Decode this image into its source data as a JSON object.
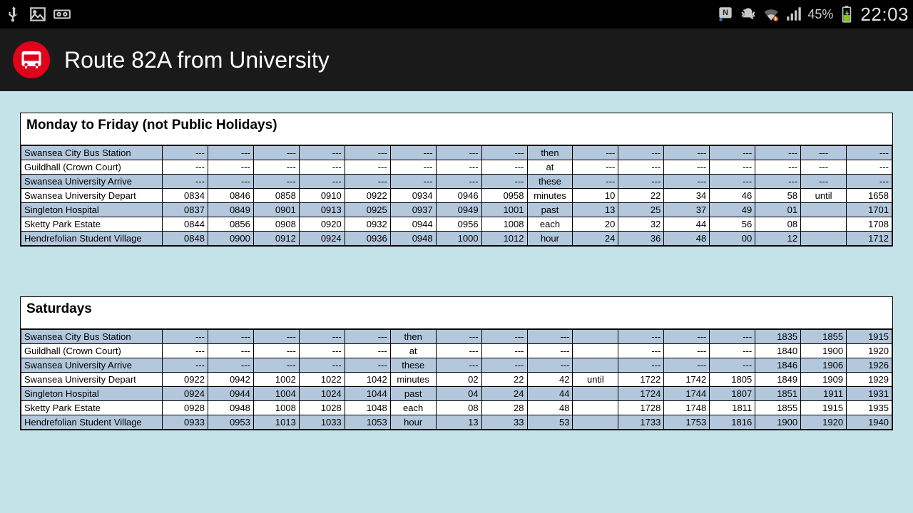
{
  "status": {
    "battery_pct": "45%",
    "time": "22:03"
  },
  "app": {
    "title": "Route 82A from University"
  },
  "panels": [
    {
      "title": "Monday to Friday (not Public Holidays)",
      "columns": 16,
      "stops": [
        "Swansea City Bus Station",
        "Guildhall (Crown Court)",
        "Swansea University Arrive",
        "Swansea University Depart",
        "Singleton Hospital",
        "Sketty Park Estate",
        "Hendrefolian Student Village"
      ],
      "alt_rows": [
        0,
        2,
        4,
        6
      ],
      "note_cols": [
        8,
        14
      ],
      "rows": [
        [
          "---",
          "---",
          "---",
          "---",
          "---",
          "---",
          "---",
          "---",
          "then",
          "---",
          "---",
          "---",
          "---",
          "---",
          "---",
          "---"
        ],
        [
          "---",
          "---",
          "---",
          "---",
          "---",
          "---",
          "---",
          "---",
          "at",
          "---",
          "---",
          "---",
          "---",
          "---",
          "---",
          "---"
        ],
        [
          "---",
          "---",
          "---",
          "---",
          "---",
          "---",
          "---",
          "---",
          "these",
          "---",
          "---",
          "---",
          "---",
          "---",
          "---",
          "---"
        ],
        [
          "0834",
          "0846",
          "0858",
          "0910",
          "0922",
          "0934",
          "0946",
          "0958",
          "minutes",
          "10",
          "22",
          "34",
          "46",
          "58",
          "until",
          "1658"
        ],
        [
          "0837",
          "0849",
          "0901",
          "0913",
          "0925",
          "0937",
          "0949",
          "1001",
          "past",
          "13",
          "25",
          "37",
          "49",
          "01",
          "",
          "1701"
        ],
        [
          "0844",
          "0856",
          "0908",
          "0920",
          "0932",
          "0944",
          "0956",
          "1008",
          "each",
          "20",
          "32",
          "44",
          "56",
          "08",
          "",
          "1708"
        ],
        [
          "0848",
          "0900",
          "0912",
          "0924",
          "0936",
          "0948",
          "1000",
          "1012",
          "hour",
          "24",
          "36",
          "48",
          "00",
          "12",
          "",
          "1712"
        ]
      ]
    },
    {
      "title": "Saturdays",
      "columns": 16,
      "stops": [
        "Swansea City Bus Station",
        "Guildhall (Crown Court)",
        "Swansea University Arrive",
        "Swansea University Depart",
        "Singleton Hospital",
        "Sketty Park Estate",
        "Hendrefolian Student Village"
      ],
      "alt_rows": [
        0,
        2,
        4,
        6
      ],
      "note_cols": [
        5,
        9
      ],
      "rows": [
        [
          "---",
          "---",
          "---",
          "---",
          "---",
          "then",
          "---",
          "---",
          "---",
          "",
          "---",
          "---",
          "---",
          "1835",
          "1855",
          "1915"
        ],
        [
          "---",
          "---",
          "---",
          "---",
          "---",
          "at",
          "---",
          "---",
          "---",
          "",
          "---",
          "---",
          "---",
          "1840",
          "1900",
          "1920"
        ],
        [
          "---",
          "---",
          "---",
          "---",
          "---",
          "these",
          "---",
          "---",
          "---",
          "",
          "---",
          "---",
          "---",
          "1846",
          "1906",
          "1926"
        ],
        [
          "0922",
          "0942",
          "1002",
          "1022",
          "1042",
          "minutes",
          "02",
          "22",
          "42",
          "until",
          "1722",
          "1742",
          "1805",
          "1849",
          "1909",
          "1929"
        ],
        [
          "0924",
          "0944",
          "1004",
          "1024",
          "1044",
          "past",
          "04",
          "24",
          "44",
          "",
          "1724",
          "1744",
          "1807",
          "1851",
          "1911",
          "1931"
        ],
        [
          "0928",
          "0948",
          "1008",
          "1028",
          "1048",
          "each",
          "08",
          "28",
          "48",
          "",
          "1728",
          "1748",
          "1811",
          "1855",
          "1915",
          "1935"
        ],
        [
          "0933",
          "0953",
          "1013",
          "1033",
          "1053",
          "hour",
          "13",
          "33",
          "53",
          "",
          "1733",
          "1753",
          "1816",
          "1900",
          "1920",
          "1940"
        ]
      ]
    }
  ]
}
